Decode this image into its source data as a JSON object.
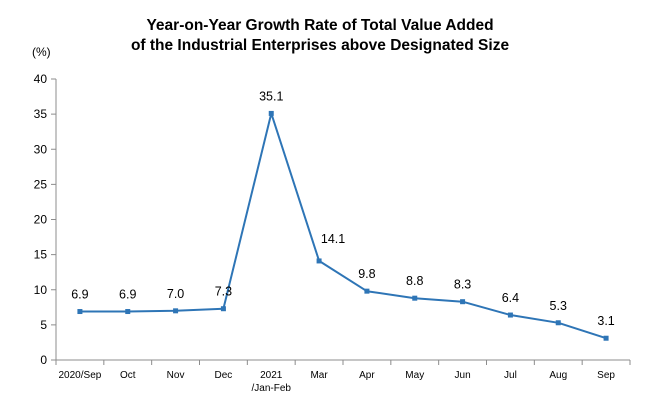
{
  "chart_data": {
    "type": "line",
    "title_lines": [
      "Year-on-Year Growth Rate of Total Value Added",
      "of the Industrial Enterprises above Designated Size"
    ],
    "ylabel": "(%)",
    "ylim": [
      0,
      40
    ],
    "yticks": [
      0,
      5,
      10,
      15,
      20,
      25,
      30,
      35,
      40
    ],
    "grid": false,
    "legend": false,
    "line_color": "#2E75B6",
    "categories": [
      {
        "line1": "2020/Sep",
        "line2": ""
      },
      {
        "line1": "Oct",
        "line2": ""
      },
      {
        "line1": "Nov",
        "line2": ""
      },
      {
        "line1": "Dec",
        "line2": ""
      },
      {
        "line1": "2021",
        "line2": "/Jan-Feb"
      },
      {
        "line1": "Mar",
        "line2": ""
      },
      {
        "line1": "Apr",
        "line2": ""
      },
      {
        "line1": "May",
        "line2": ""
      },
      {
        "line1": "Jun",
        "line2": ""
      },
      {
        "line1": "Jul",
        "line2": ""
      },
      {
        "line1": "Aug",
        "line2": ""
      },
      {
        "line1": "Sep",
        "line2": ""
      }
    ],
    "values": [
      6.9,
      6.9,
      7.0,
      7.3,
      35.1,
      14.1,
      9.8,
      8.8,
      8.3,
      6.4,
      5.3,
      3.1
    ],
    "data_labels": [
      "6.9",
      "6.9",
      "7.0",
      "7.3",
      "35.1",
      "14.1",
      "9.8",
      "8.8",
      "8.3",
      "6.4",
      "5.3",
      "3.1"
    ]
  }
}
